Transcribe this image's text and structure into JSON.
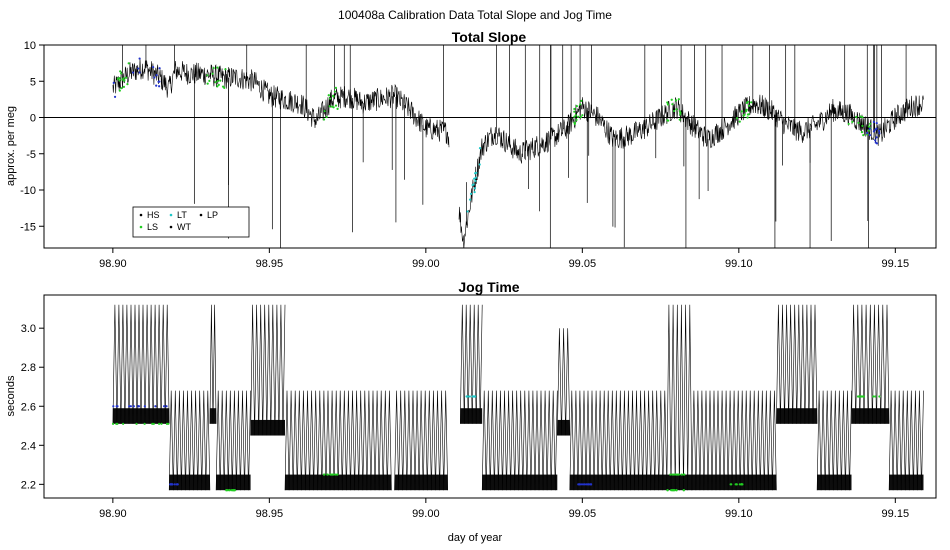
{
  "figure_title": "100408a   Calibration Data Total Slope and Jog Time",
  "chart_data": [
    {
      "type": "line",
      "title": "Total Slope",
      "xlabel": "",
      "ylabel": "approx. per meg",
      "xlim": [
        98.878,
        99.163
      ],
      "ylim": [
        -18,
        10
      ],
      "x_ticks": [
        "98.90",
        "98.95",
        "99.00",
        "99.05",
        "99.10",
        "99.15"
      ],
      "x_tick_values": [
        98.9,
        98.95,
        99.0,
        99.05,
        99.1,
        99.15
      ],
      "y_ticks": [
        "-15",
        "-10",
        "-5",
        "0",
        "5",
        "10"
      ],
      "y_tick_values": [
        -15,
        -10,
        -5,
        0,
        5,
        10
      ],
      "reference_line_y": 0,
      "legend": {
        "placement": "bottom-left",
        "entries": [
          {
            "label": "HS",
            "color": "#000000"
          },
          {
            "label": "LT",
            "color": "#1fc8c8"
          },
          {
            "label": "LP",
            "color": "#000000"
          },
          {
            "label": "LS",
            "color": "#22cc22"
          },
          {
            "label": "WT",
            "color": "#000000"
          }
        ]
      },
      "series_color": "#000000",
      "trend": {
        "x": [
          98.9,
          98.905,
          98.91,
          98.915,
          98.918,
          98.92,
          98.925,
          98.93,
          98.935,
          98.94,
          98.945,
          98.95,
          98.955,
          98.96,
          98.965,
          98.97,
          98.975,
          98.98,
          98.985,
          98.99,
          98.995,
          99.0,
          99.007,
          99.012,
          99.015,
          99.018,
          99.022,
          99.026,
          99.03,
          99.035,
          99.04,
          99.045,
          99.05,
          99.055,
          99.06,
          99.065,
          99.07,
          99.075,
          99.08,
          99.085,
          99.09,
          99.095,
          99.1,
          99.105,
          99.11,
          99.115,
          99.12,
          99.125,
          99.13,
          99.135,
          99.14,
          99.145,
          99.15,
          99.155,
          99.159
        ],
        "y": [
          4.0,
          6.0,
          7.0,
          5.5,
          4.0,
          6.5,
          6.0,
          6.0,
          5.5,
          5.5,
          5.0,
          3.0,
          2.5,
          2.0,
          -0.5,
          2.5,
          3.0,
          2.0,
          2.5,
          3.0,
          1.0,
          -1.5,
          -2.0,
          -17.0,
          -10.0,
          -4.0,
          -2.0,
          -3.5,
          -5.0,
          -4.0,
          -3.0,
          -1.5,
          1.5,
          0.0,
          -3.0,
          -2.5,
          -1.5,
          0.0,
          1.5,
          -1.0,
          -3.0,
          -1.5,
          0.5,
          2.0,
          1.0,
          -1.0,
          -2.0,
          -1.0,
          1.0,
          0.5,
          -1.0,
          -2.5,
          0.0,
          1.5,
          2.0
        ]
      }
    },
    {
      "type": "line",
      "title": "Jog Time",
      "xlabel": "day of year",
      "ylabel": "seconds",
      "xlim": [
        98.878,
        99.163
      ],
      "ylim": [
        2.13,
        3.17
      ],
      "x_ticks": [
        "98.90",
        "98.95",
        "99.00",
        "99.05",
        "99.10",
        "99.15"
      ],
      "x_tick_values": [
        98.9,
        98.95,
        99.0,
        99.05,
        99.1,
        99.15
      ],
      "y_ticks": [
        "2.2",
        "2.4",
        "2.6",
        "2.8",
        "3.0"
      ],
      "y_tick_values": [
        2.2,
        2.4,
        2.6,
        2.8,
        3.0
      ],
      "series_color": "#000000",
      "levels": [
        2.17,
        2.25,
        2.51,
        2.6,
        2.68,
        3.12
      ],
      "segments": [
        {
          "x0": 98.9,
          "x1": 98.918,
          "low": 2.51,
          "high": 3.12
        },
        {
          "x0": 98.918,
          "x1": 98.931,
          "low": 2.17,
          "high": 2.68
        },
        {
          "x0": 98.931,
          "x1": 98.933,
          "low": 2.51,
          "high": 3.12
        },
        {
          "x0": 98.933,
          "x1": 98.944,
          "low": 2.17,
          "high": 2.68
        },
        {
          "x0": 98.944,
          "x1": 98.955,
          "low": 2.45,
          "high": 3.12
        },
        {
          "x0": 98.955,
          "x1": 98.989,
          "low": 2.17,
          "high": 2.68
        },
        {
          "x0": 98.99,
          "x1": 99.007,
          "low": 2.17,
          "high": 2.68
        },
        {
          "x0": 99.011,
          "x1": 99.018,
          "low": 2.51,
          "high": 3.12
        },
        {
          "x0": 99.018,
          "x1": 99.042,
          "low": 2.17,
          "high": 2.68
        },
        {
          "x0": 99.042,
          "x1": 99.046,
          "low": 2.45,
          "high": 3.0
        },
        {
          "x0": 99.046,
          "x1": 99.077,
          "low": 2.17,
          "high": 2.68
        },
        {
          "x0": 99.077,
          "x1": 99.085,
          "low": 2.17,
          "high": 3.12
        },
        {
          "x0": 99.085,
          "x1": 99.112,
          "low": 2.17,
          "high": 2.68
        },
        {
          "x0": 99.112,
          "x1": 99.125,
          "low": 2.51,
          "high": 3.12
        },
        {
          "x0": 99.125,
          "x1": 99.136,
          "low": 2.17,
          "high": 2.68
        },
        {
          "x0": 99.136,
          "x1": 99.148,
          "low": 2.51,
          "high": 3.12
        },
        {
          "x0": 99.148,
          "x1": 99.159,
          "low": 2.17,
          "high": 2.68
        }
      ]
    }
  ]
}
